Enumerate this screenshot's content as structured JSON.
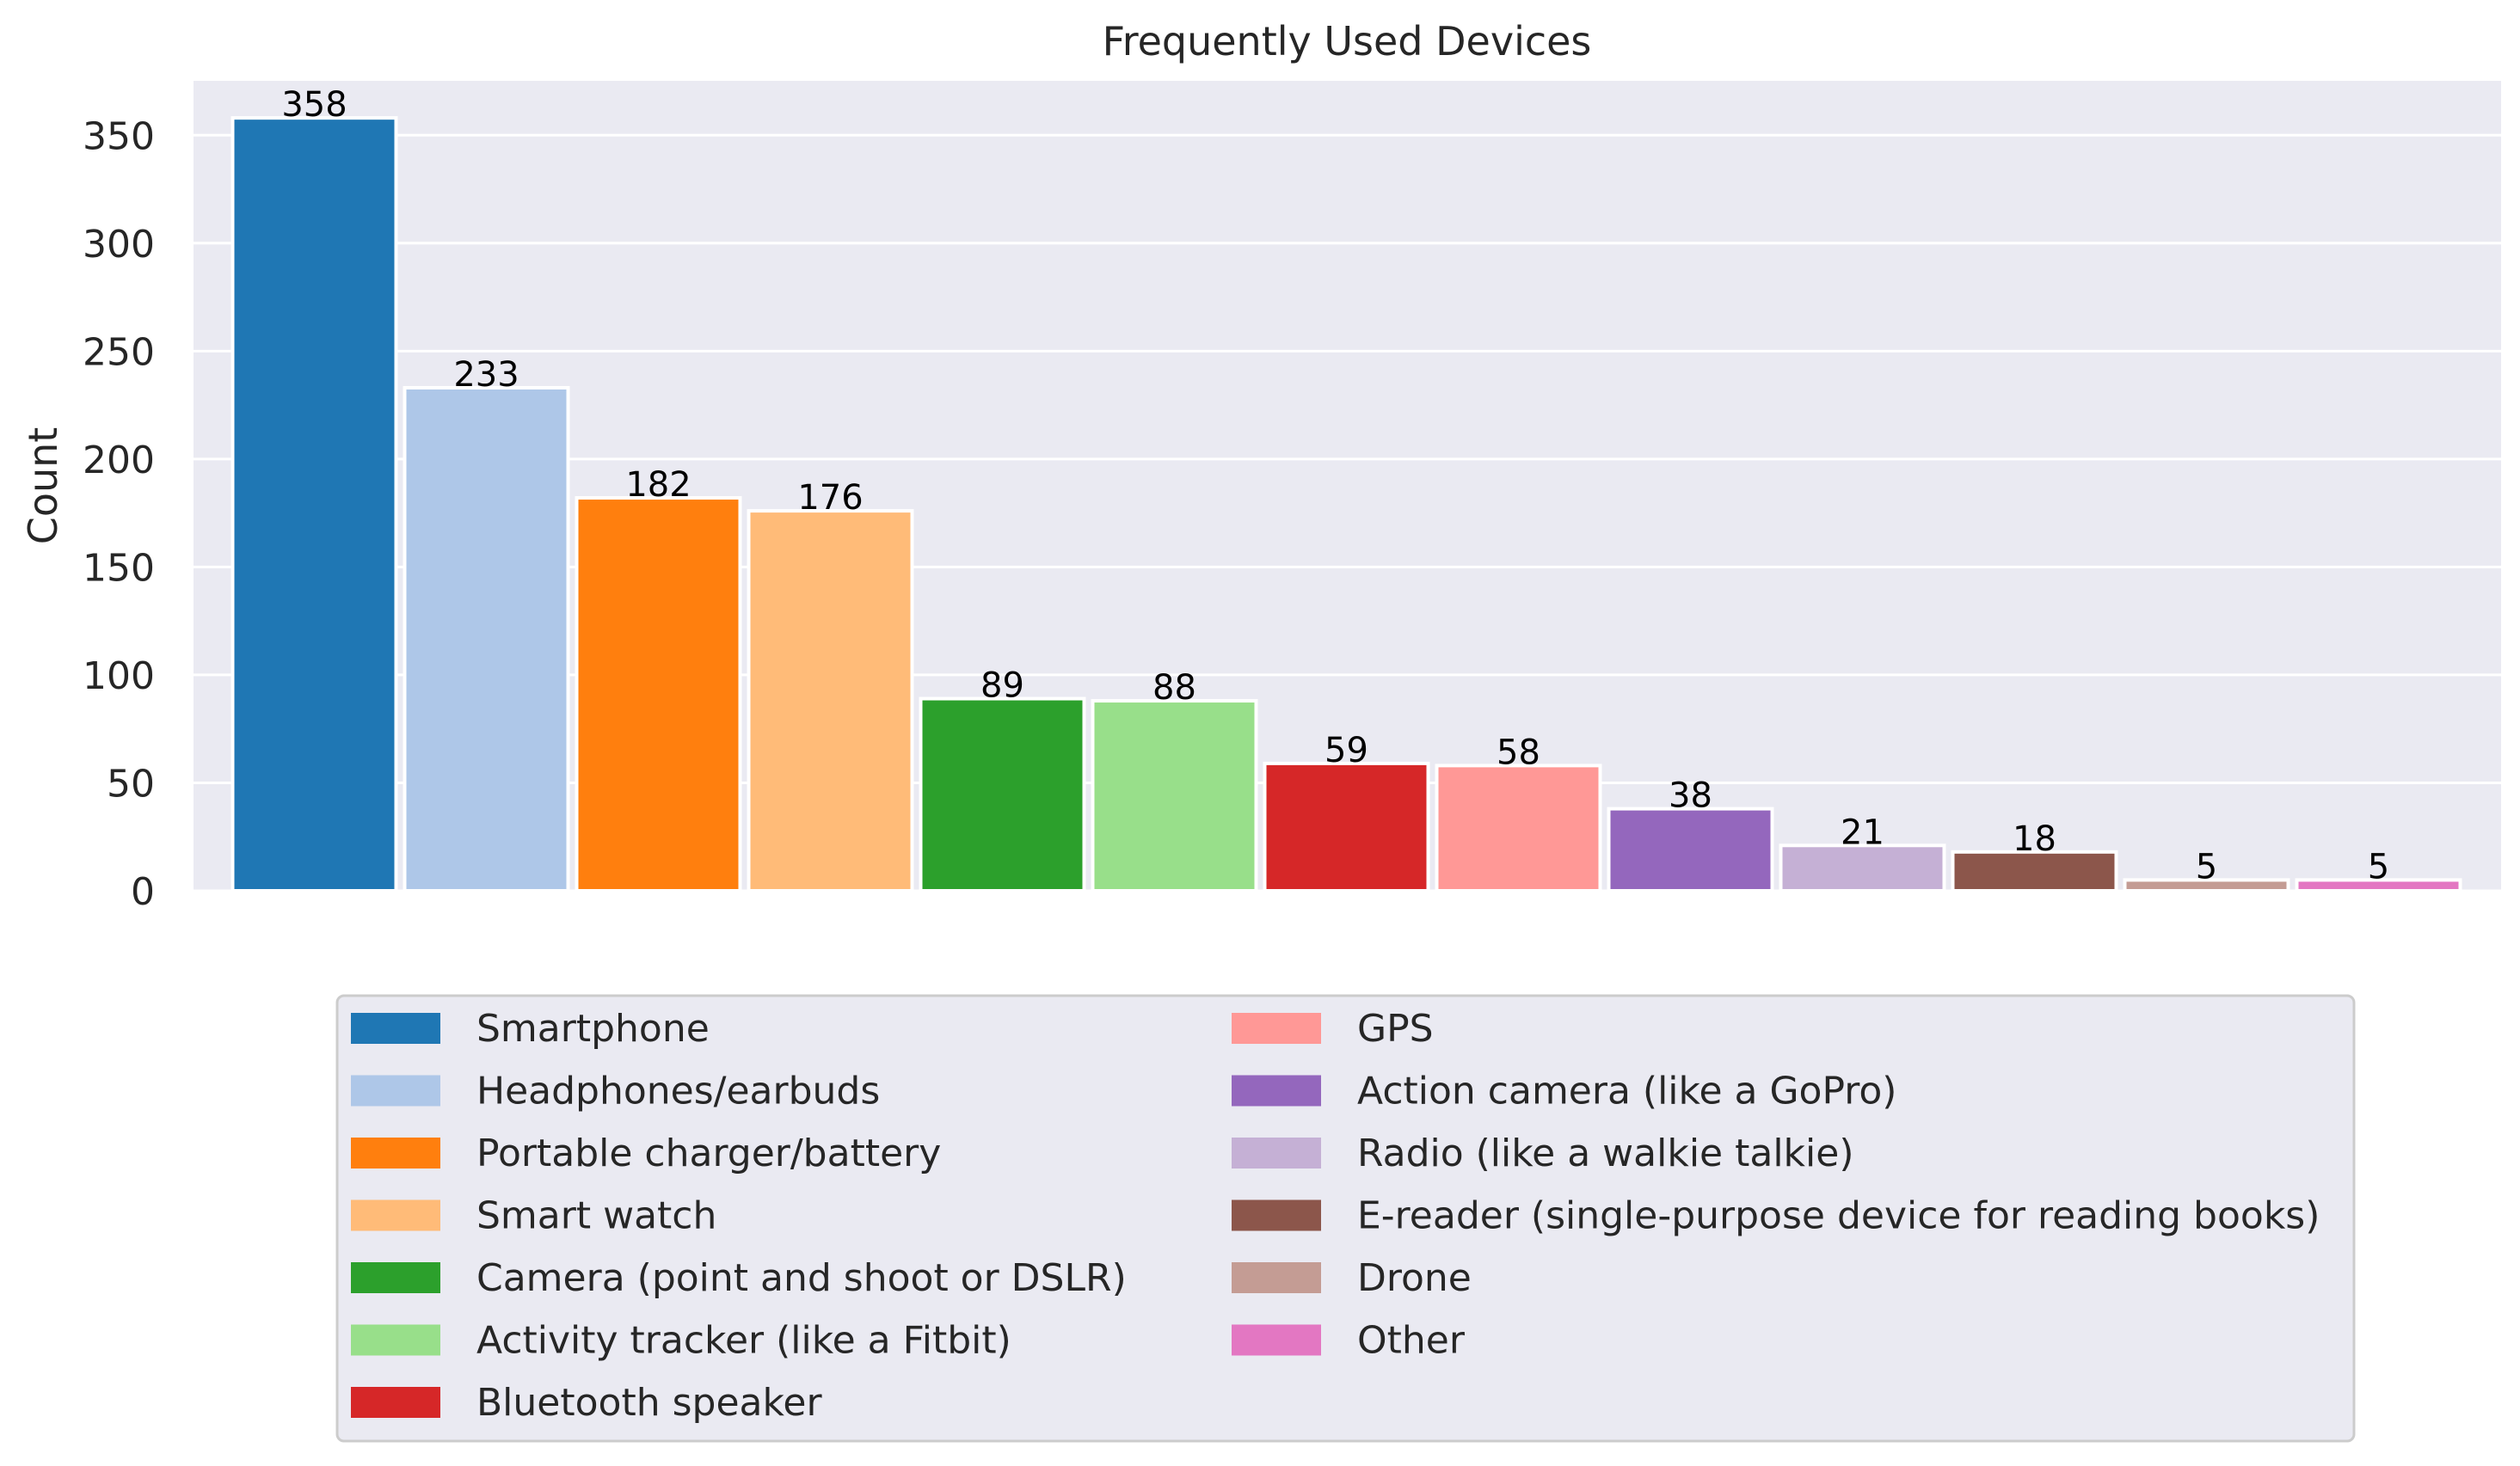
{
  "chart_data": {
    "type": "bar",
    "title": "Frequently Used Devices",
    "xlabel": "",
    "ylabel": "Count",
    "ylim": [
      0,
      375
    ],
    "yticks": [
      0,
      50,
      100,
      150,
      200,
      250,
      300,
      350
    ],
    "grid": true,
    "legend_position": "below",
    "categories": [
      "Smartphone",
      "Headphones/earbuds",
      "Portable charger/battery",
      "Smart watch",
      "Camera (point and shoot or DSLR)",
      "Activity tracker (like a Fitbit)",
      "Bluetooth speaker",
      "GPS",
      "Action camera (like a GoPro)",
      "Radio (like a walkie talkie)",
      "E-reader (single-purpose device for reading books)",
      "Drone",
      "Other"
    ],
    "values": [
      358,
      233,
      182,
      176,
      89,
      88,
      59,
      58,
      38,
      21,
      18,
      5,
      5
    ],
    "colors": [
      "#1f77b4",
      "#aec7e8",
      "#ff7f0e",
      "#ffbb78",
      "#2ca02c",
      "#98df8a",
      "#d62728",
      "#ff9896",
      "#9467bd",
      "#c5b0d5",
      "#8c564b",
      "#c49c94",
      "#e377c2"
    ]
  }
}
